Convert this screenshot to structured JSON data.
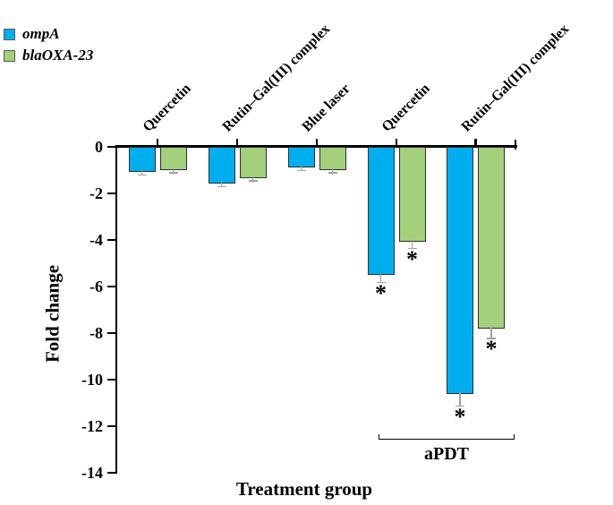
{
  "legend": {
    "items": [
      {
        "label": "ompA",
        "color": "#00AEEF"
      },
      {
        "label": "blaOXA-23",
        "color": "#A4CF7D"
      }
    ]
  },
  "chart_data": {
    "type": "bar",
    "title": "",
    "xlabel": "Treatment group",
    "ylabel": "Fold change",
    "categories": [
      "Quercetin",
      "Rutin–Gal(III) complex",
      "Blue laser",
      "Quercetin",
      "Rutin–Gal(III) complex"
    ],
    "series": [
      {
        "name": "ompA",
        "color": "#00AEEF",
        "values": [
          -1.1,
          -1.6,
          -0.9,
          -5.5,
          -10.6
        ],
        "errors": [
          0.1,
          0.1,
          0.1,
          0.3,
          0.5
        ],
        "significant": [
          false,
          false,
          false,
          true,
          true
        ]
      },
      {
        "name": "blaOXA-23",
        "color": "#A4CF7D",
        "values": [
          -1.0,
          -1.35,
          -1.0,
          -4.1,
          -7.8
        ],
        "errors": [
          0.1,
          0.1,
          0.1,
          0.25,
          0.4
        ],
        "significant": [
          false,
          false,
          false,
          true,
          true
        ]
      }
    ],
    "ylim": [
      -14,
      0
    ],
    "yticks": [
      0,
      -2,
      -4,
      -6,
      -8,
      -10,
      -12,
      -14
    ],
    "grid": false,
    "legend_position": "top-left",
    "error_bar_color": "#a0a0a0",
    "annotations": {
      "significance_marker": "*",
      "bracket_label": "aPDT",
      "bracket_category_indexes": [
        3,
        4
      ]
    }
  }
}
